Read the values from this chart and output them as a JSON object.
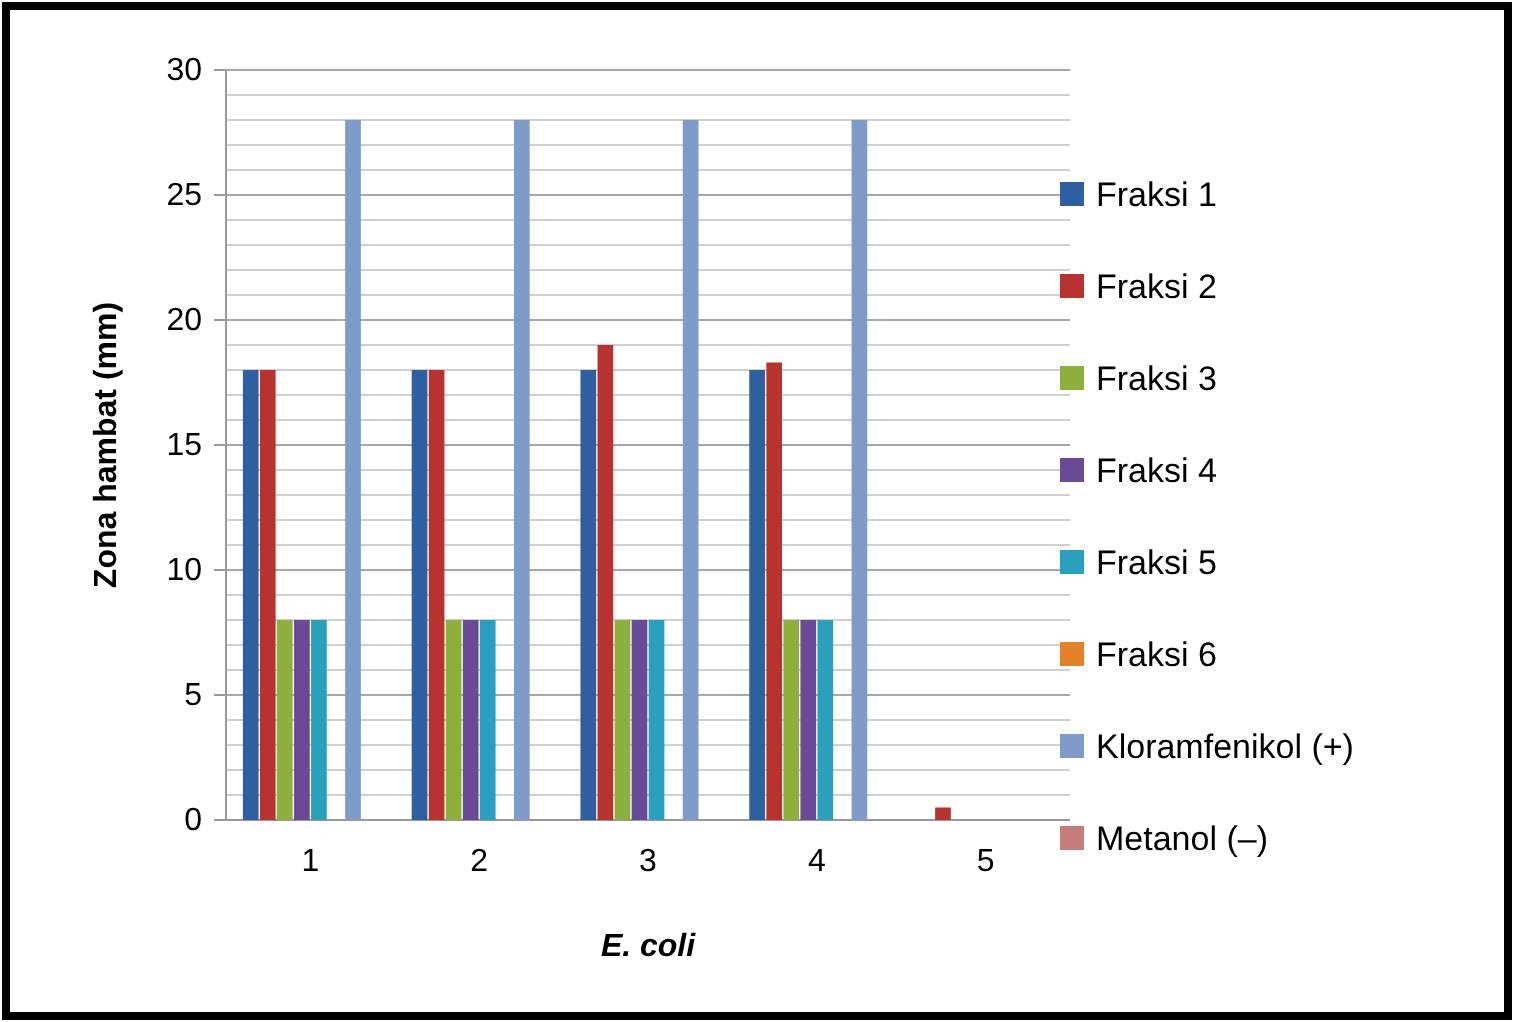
{
  "chart_data": {
    "type": "bar",
    "xlabel": "E. coli",
    "ylabel": "Zona hambat (mm)",
    "categories": [
      "1",
      "2",
      "3",
      "4",
      "5"
    ],
    "series": [
      {
        "name": "Fraksi 1",
        "color": "#2e5fa0",
        "values": [
          18,
          18,
          18,
          18,
          0
        ]
      },
      {
        "name": "Fraksi 2",
        "color": "#b8322f",
        "values": [
          18,
          18,
          19,
          18.3,
          0.5
        ]
      },
      {
        "name": "Fraksi 3",
        "color": "#8db03c",
        "values": [
          8,
          8,
          8,
          8,
          0
        ]
      },
      {
        "name": "Fraksi 4",
        "color": "#6a4a96",
        "values": [
          8,
          8,
          8,
          8,
          0
        ]
      },
      {
        "name": "Fraksi 5",
        "color": "#2aa0bf",
        "values": [
          8,
          8,
          8,
          8,
          0
        ]
      },
      {
        "name": "Fraksi 6",
        "color": "#e2822a",
        "values": [
          0,
          0,
          0,
          0,
          0
        ]
      },
      {
        "name": "Kloramfenikol (+)",
        "color": "#7f9bc9",
        "values": [
          28,
          28,
          28,
          28,
          0
        ]
      },
      {
        "name": "Metanol (–)",
        "color": "#c87d7d",
        "values": [
          0,
          0,
          0,
          0,
          0
        ]
      }
    ],
    "ylim": [
      0,
      30
    ],
    "yticks": [
      0,
      {
        "value": 1,
        "label": null
      },
      {
        "value": 2,
        "label": null
      },
      {
        "value": 3,
        "label": null
      },
      {
        "value": 4,
        "label": null
      },
      5,
      {
        "value": 6,
        "label": null
      },
      {
        "value": 7,
        "label": null
      },
      {
        "value": 8,
        "label": null
      },
      {
        "value": 9,
        "label": null
      },
      10,
      {
        "value": 11,
        "label": null
      },
      {
        "value": 12,
        "label": null
      },
      {
        "value": 13,
        "label": null
      },
      {
        "value": 14,
        "label": null
      },
      15,
      {
        "value": 16,
        "label": null
      },
      {
        "value": 17,
        "label": null
      },
      {
        "value": 18,
        "label": null
      },
      {
        "value": 19,
        "label": null
      },
      20,
      {
        "value": 21,
        "label": null
      },
      {
        "value": 22,
        "label": null
      },
      {
        "value": 23,
        "label": null
      },
      {
        "value": 24,
        "label": null
      },
      25,
      {
        "value": 26,
        "label": null
      },
      {
        "value": 27,
        "label": null
      },
      {
        "value": 28,
        "label": null
      },
      {
        "value": 29,
        "label": null
      },
      30
    ],
    "grid": "y",
    "legend": "right"
  }
}
